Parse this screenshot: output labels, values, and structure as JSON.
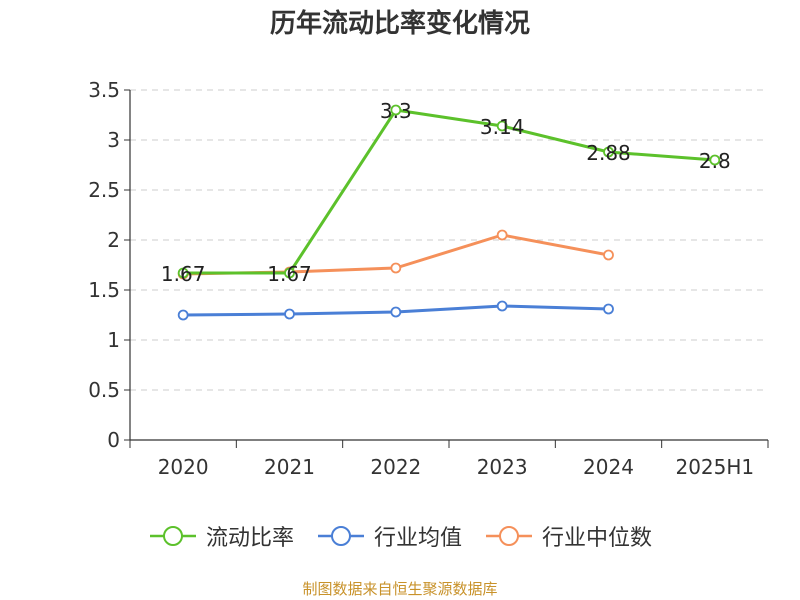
{
  "chart_data": {
    "type": "line",
    "title": "历年流动比率变化情况",
    "categories": [
      "2020",
      "2021",
      "2022",
      "2023",
      "2024",
      "2025H1"
    ],
    "ylim": [
      0,
      3.5
    ],
    "yticks": [
      "0",
      "0.5",
      "1",
      "1.5",
      "2",
      "2.5",
      "3",
      "3.5"
    ],
    "grid": true,
    "legend_position": "bottom",
    "series": [
      {
        "name": "流动比率",
        "color": "#5cc12b",
        "values": [
          1.67,
          1.67,
          3.3,
          3.14,
          2.88,
          2.8
        ],
        "labels": [
          "1.67",
          "1.67",
          "3.3",
          "3.14",
          "2.88",
          "2.8"
        ]
      },
      {
        "name": "行业均值",
        "color": "#4a7fd6",
        "values": [
          1.25,
          1.26,
          1.28,
          1.34,
          1.31,
          null
        ],
        "labels": []
      },
      {
        "name": "行业中位数",
        "color": "#f5905a",
        "values": [
          1.66,
          1.68,
          1.72,
          2.05,
          1.85,
          null
        ],
        "labels": []
      }
    ]
  },
  "source": "制图数据来自恒生聚源数据库"
}
